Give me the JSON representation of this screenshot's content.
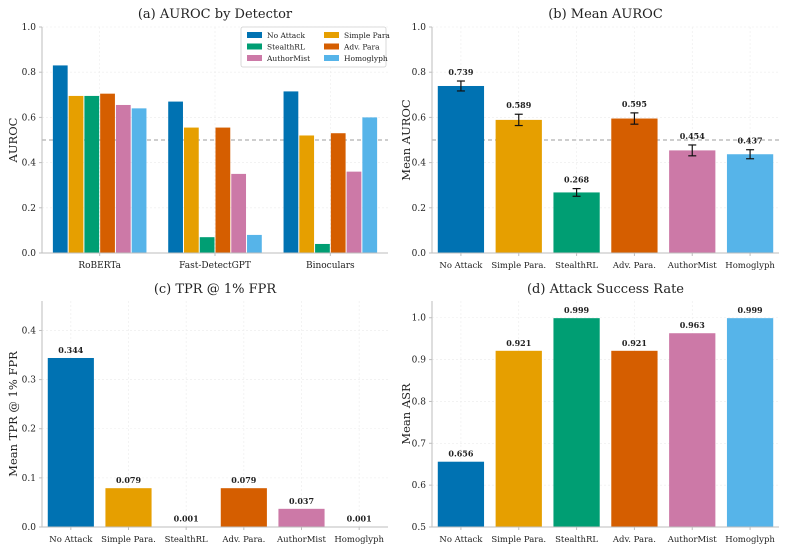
{
  "chart_data": [
    {
      "id": "a",
      "type": "bar",
      "title": "(a) AUROC by Detector",
      "xlabel": "",
      "ylabel": "AUROC",
      "ylim": [
        0,
        1.0
      ],
      "yticks": [
        "0.0",
        "0.2",
        "0.4",
        "0.6",
        "0.8",
        "1.0"
      ],
      "ytick_values": [
        0,
        0.2,
        0.4,
        0.6,
        0.8,
        1.0
      ],
      "reference_line": 0.5,
      "grid": true,
      "legend_position": "top-right",
      "categories": [
        "RoBERTa",
        "Fast-DetectGPT",
        "Binoculars"
      ],
      "series": [
        {
          "name": "No Attack",
          "color": "#0072b2",
          "values": [
            0.83,
            0.67,
            0.715
          ]
        },
        {
          "name": "Simple Para",
          "color": "#e69f00",
          "values": [
            0.695,
            0.555,
            0.52
          ]
        },
        {
          "name": "StealthRL",
          "color": "#009e73",
          "values": [
            0.695,
            0.07,
            0.04
          ]
        },
        {
          "name": "Adv. Para",
          "color": "#d55e00",
          "values": [
            0.705,
            0.555,
            0.53
          ]
        },
        {
          "name": "AuthorMist",
          "color": "#cc79a7",
          "values": [
            0.655,
            0.35,
            0.36
          ]
        },
        {
          "name": "Homoglyph",
          "color": "#56b4e9",
          "values": [
            0.64,
            0.08,
            0.6
          ]
        }
      ]
    },
    {
      "id": "b",
      "type": "bar",
      "title": "(b) Mean AUROC",
      "xlabel": "",
      "ylabel": "Mean AUROC",
      "ylim": [
        0,
        1.0
      ],
      "yticks": [
        "0.0",
        "0.2",
        "0.4",
        "0.6",
        "0.8",
        "1.0"
      ],
      "ytick_values": [
        0,
        0.2,
        0.4,
        0.6,
        0.8,
        1.0
      ],
      "reference_line": 0.5,
      "grid": true,
      "categories": [
        "No Attack",
        "Simple Para.",
        "StealthRL",
        "Adv. Para.",
        "AuthorMist",
        "Homoglyph"
      ],
      "colors": [
        "#0072b2",
        "#e69f00",
        "#009e73",
        "#d55e00",
        "#cc79a7",
        "#56b4e9"
      ],
      "values": [
        0.739,
        0.589,
        0.268,
        0.595,
        0.454,
        0.437
      ],
      "value_labels": [
        "0.739",
        "0.589",
        "0.268",
        "0.595",
        "0.454",
        "0.437"
      ],
      "errors": [
        0.022,
        0.025,
        0.017,
        0.025,
        0.024,
        0.02
      ]
    },
    {
      "id": "c",
      "type": "bar",
      "title": "(c) TPR @ 1% FPR",
      "xlabel": "",
      "ylabel": "Mean TPR @ 1% FPR",
      "ylim": [
        0,
        0.46
      ],
      "yticks": [
        "0.0",
        "0.1",
        "0.2",
        "0.3",
        "0.4"
      ],
      "ytick_values": [
        0,
        0.1,
        0.2,
        0.3,
        0.4
      ],
      "grid": true,
      "categories": [
        "No Attack",
        "Simple Para.",
        "StealthRL",
        "Adv. Para.",
        "AuthorMist",
        "Homoglyph"
      ],
      "colors": [
        "#0072b2",
        "#e69f00",
        "#009e73",
        "#d55e00",
        "#cc79a7",
        "#56b4e9"
      ],
      "values": [
        0.344,
        0.079,
        0.001,
        0.079,
        0.037,
        0.001
      ],
      "value_labels": [
        "0.344",
        "0.079",
        "0.001",
        "0.079",
        "0.037",
        "0.001"
      ]
    },
    {
      "id": "d",
      "type": "bar",
      "title": "(d) Attack Success Rate",
      "xlabel": "",
      "ylabel": "Mean ASR",
      "ylim": [
        0.5,
        1.04
      ],
      "yticks": [
        "0.5",
        "0.6",
        "0.7",
        "0.8",
        "0.9",
        "1.0"
      ],
      "ytick_values": [
        0.5,
        0.6,
        0.7,
        0.8,
        0.9,
        1.0
      ],
      "grid": true,
      "categories": [
        "No Attack",
        "Simple Para.",
        "StealthRL",
        "Adv. Para.",
        "AuthorMist",
        "Homoglyph"
      ],
      "colors": [
        "#0072b2",
        "#e69f00",
        "#009e73",
        "#d55e00",
        "#cc79a7",
        "#56b4e9"
      ],
      "values": [
        0.656,
        0.921,
        0.999,
        0.921,
        0.963,
        0.999
      ],
      "value_labels": [
        "0.656",
        "0.921",
        "0.999",
        "0.921",
        "0.963",
        "0.999"
      ]
    }
  ]
}
